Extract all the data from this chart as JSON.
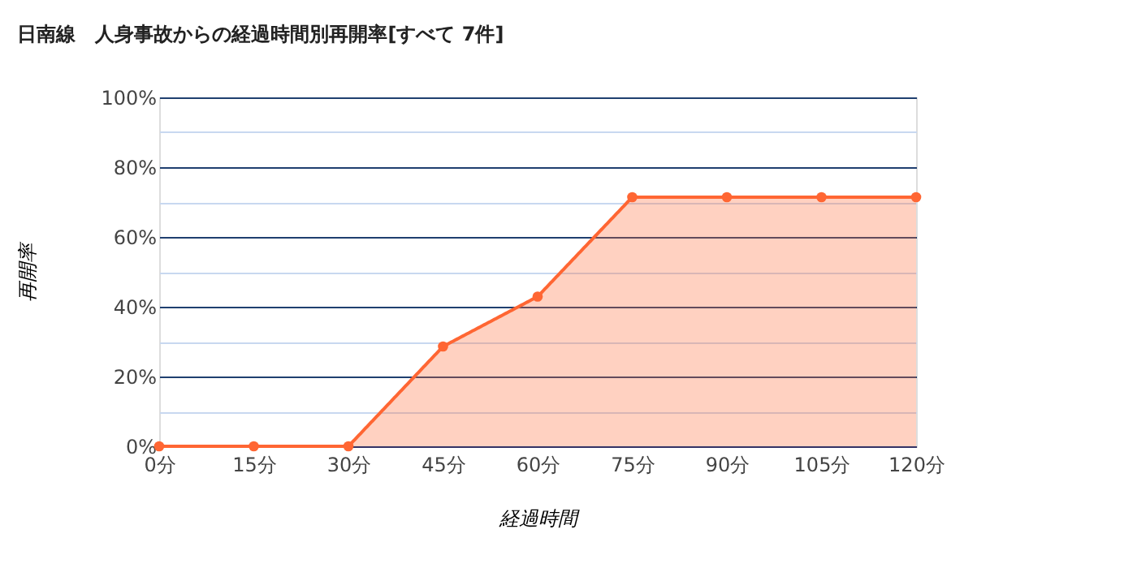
{
  "chart_data": {
    "type": "area",
    "title": "日南線　人身事故からの経過時間別再開率[すべて 7件]",
    "xlabel": "経過時間",
    "ylabel": "再開率",
    "categories": [
      "0分",
      "15分",
      "30分",
      "45分",
      "60分",
      "75分",
      "90分",
      "105分",
      "120分"
    ],
    "series": [
      {
        "color": "#ff6633",
        "values": [
          0,
          0,
          0,
          28.6,
          42.9,
          71.4,
          71.4,
          71.4,
          71.4
        ]
      }
    ],
    "ylim": [
      0,
      100
    ],
    "yticks": [
      {
        "value": 0,
        "label": "0%"
      },
      {
        "value": 10,
        "label": null
      },
      {
        "value": 20,
        "label": "20%"
      },
      {
        "value": 30,
        "label": null
      },
      {
        "value": 40,
        "label": "40%"
      },
      {
        "value": 50,
        "label": null
      },
      {
        "value": 60,
        "label": "60%"
      },
      {
        "value": 70,
        "label": null
      },
      {
        "value": 80,
        "label": "80%"
      },
      {
        "value": 90,
        "label": null
      },
      {
        "value": 100,
        "label": "100%"
      }
    ],
    "grid": "y",
    "marker": "circle",
    "line_style": "solid"
  }
}
